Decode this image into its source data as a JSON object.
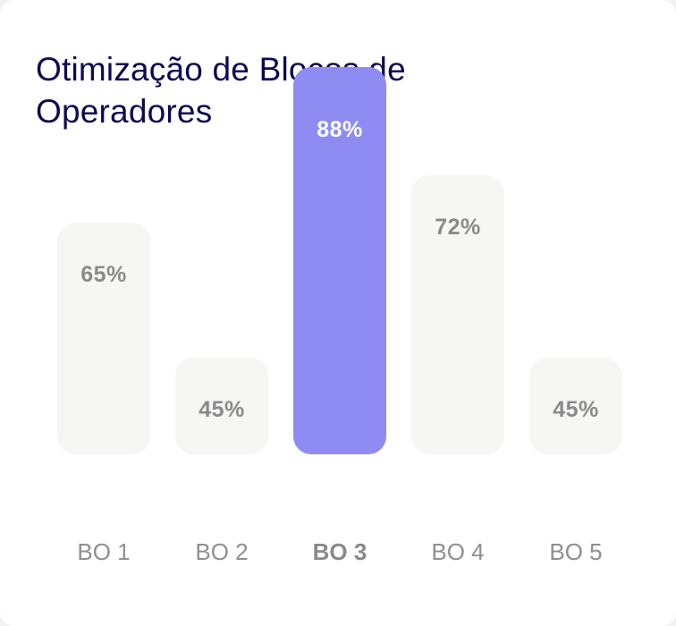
{
  "chart_data": {
    "type": "bar",
    "title": "Otimização de Blocos de Operadores",
    "categories": [
      "BO 1",
      "BO 2",
      "BO 3",
      "BO 4",
      "BO 5"
    ],
    "values": [
      65,
      45,
      88,
      72,
      45
    ],
    "value_labels": [
      "65%",
      "45%",
      "88%",
      "72%",
      "45%"
    ],
    "highlighted_category": "BO 3",
    "xlabel": "",
    "ylabel": "",
    "ylim": [
      0,
      100
    ],
    "grid": false,
    "colors": {
      "bar": "#f6f6f5",
      "highlight": "#8e8cf3",
      "title": "#0d0a52",
      "label": "#8f8f8f"
    }
  }
}
